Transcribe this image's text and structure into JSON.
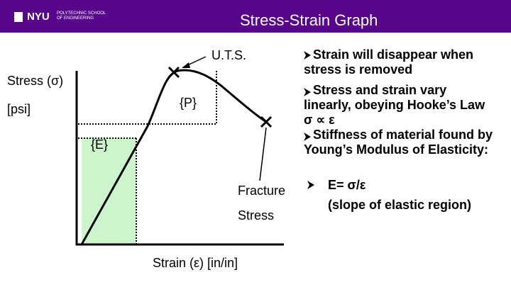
{
  "header": {
    "title": "Stress-Strain Graph",
    "logo": {
      "name": "NYU",
      "school": [
        "POLYTECHNIC SCHOOL",
        "OF ENGINEERING"
      ]
    }
  },
  "graph": {
    "y_axis_label": "Stress (σ)",
    "y_axis_unit": "[psi]",
    "x_axis_label": "Strain (ε)  [in/in]",
    "labels": {
      "uts": "U.T.S.",
      "proportional": "{P}",
      "elastic": "{E}",
      "fracture": "Fracture",
      "stress": "Stress"
    }
  },
  "bullets": [
    {
      "lines": [
        "Strain will disappear when",
        "stress is removed"
      ]
    },
    {
      "lines": [
        "Stress and strain vary",
        "linearly, obeying Hooke’s Law",
        "σ ∝ ε"
      ]
    },
    {
      "lines": [
        "Stiffness of material found by",
        "Young’s Modulus of Elasticity:"
      ]
    },
    {
      "lines": [
        "E= σ/ε",
        "(slope of elastic region)"
      ]
    }
  ]
}
